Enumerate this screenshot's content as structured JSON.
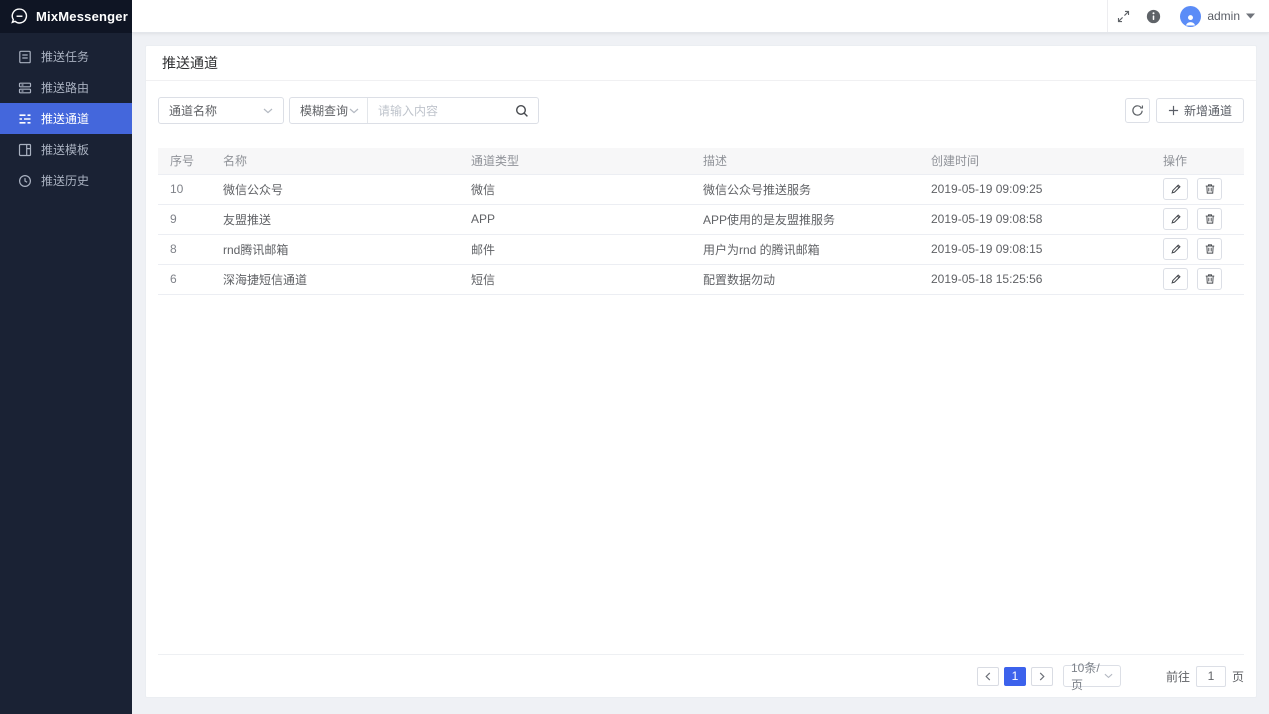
{
  "app": {
    "name": "MixMessenger"
  },
  "header": {
    "username": "admin",
    "icons": [
      "fullscreen-icon",
      "info-icon",
      "avatar",
      "caret-down-icon"
    ]
  },
  "sidebar": {
    "items": [
      {
        "key": "push-tasks",
        "label": "推送任务",
        "icon": "tasks-icon",
        "active": false
      },
      {
        "key": "push-routes",
        "label": "推送路由",
        "icon": "route-icon",
        "active": false
      },
      {
        "key": "push-channels",
        "label": "推送通道",
        "icon": "channels-icon",
        "active": true
      },
      {
        "key": "push-templates",
        "label": "推送模板",
        "icon": "template-icon",
        "active": false
      },
      {
        "key": "push-history",
        "label": "推送历史",
        "icon": "history-icon",
        "active": false
      }
    ]
  },
  "page": {
    "title": "推送通道"
  },
  "toolbar": {
    "field_select": "通道名称",
    "match_select": "模糊查询",
    "search_placeholder": "请输入内容",
    "add_button": "新增通道"
  },
  "table": {
    "columns": [
      "序号",
      "名称",
      "通道类型",
      "描述",
      "创建时间",
      "操作"
    ],
    "rows": [
      {
        "id": "10",
        "name": "微信公众号",
        "type": "微信",
        "desc": "微信公众号推送服务",
        "created": "2019-05-19 09:09:25"
      },
      {
        "id": "9",
        "name": "友盟推送",
        "type": "APP",
        "desc": "APP使用的是友盟推服务",
        "created": "2019-05-19 09:08:58"
      },
      {
        "id": "8",
        "name": "rnd腾讯邮箱",
        "type": "邮件",
        "desc": "用户为rnd 的腾讯邮箱",
        "created": "2019-05-19 09:08:15"
      },
      {
        "id": "6",
        "name": "深海捷短信通道",
        "type": "短信",
        "desc": "配置数据勿动",
        "created": "2019-05-18 15:25:56"
      }
    ]
  },
  "pagination": {
    "current_page": "1",
    "page_size": "10条/页",
    "goto_label": "前往",
    "goto_value": "1",
    "unit_label": "页"
  },
  "colors": {
    "accent": "#4467dc",
    "pagination_active": "#3c62ec",
    "sidebar_bg": "#1a2234",
    "logo_bg": "#0f1524",
    "page_bg": "#eff1f5",
    "table_header_bg": "#f7f7f8",
    "border": "#dcdfe6",
    "text_primary": "#303133",
    "text_secondary": "#606266",
    "text_muted": "#909399"
  }
}
